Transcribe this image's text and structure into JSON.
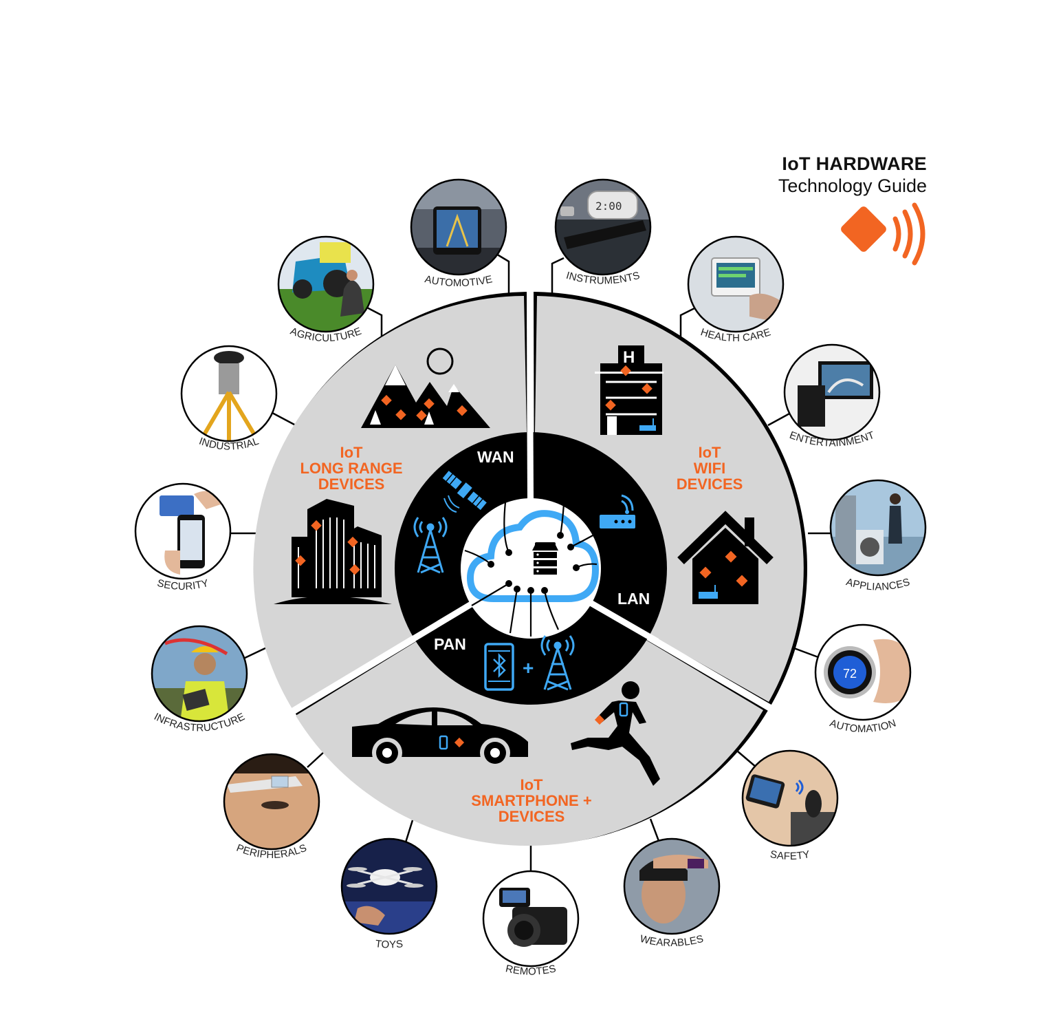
{
  "header": {
    "title": "IoT HARDWARE",
    "subtitle": "Technology Guide"
  },
  "colors": {
    "accent": "#f26522",
    "network_blue": "#3fa9f5",
    "segment_gray": "#d6d6d6",
    "ring_black": "#000000"
  },
  "segments": {
    "long_range": {
      "lines": [
        "IoT",
        "LONG RANGE",
        "DEVICES"
      ]
    },
    "wifi": {
      "lines": [
        "IoT",
        "WIFI",
        "DEVICES"
      ]
    },
    "smartphone": {
      "lines": [
        "IoT",
        "SMARTPHONE +",
        "DEVICES"
      ]
    }
  },
  "rings": {
    "wan": "WAN",
    "lan": "LAN",
    "pan": "PAN",
    "plus": "+"
  },
  "categories": [
    {
      "id": "automotive",
      "label": "AUTOMOTIVE"
    },
    {
      "id": "instruments",
      "label": "INSTRUMENTS"
    },
    {
      "id": "health-care",
      "label": "HEALTH CARE"
    },
    {
      "id": "entertainment",
      "label": "ENTERTAINMENT"
    },
    {
      "id": "appliances",
      "label": "APPLIANCES"
    },
    {
      "id": "automation",
      "label": "AUTOMATION"
    },
    {
      "id": "safety",
      "label": "SAFETY"
    },
    {
      "id": "wearables",
      "label": "WEARABLES"
    },
    {
      "id": "remotes",
      "label": "REMOTES"
    },
    {
      "id": "toys",
      "label": "TOYS"
    },
    {
      "id": "peripherals",
      "label": "PERIPHERALS"
    },
    {
      "id": "infrastructure",
      "label": "INFRASTRUCTURE"
    },
    {
      "id": "security",
      "label": "SECURITY"
    },
    {
      "id": "industrial",
      "label": "INDUSTRIAL"
    },
    {
      "id": "agriculture",
      "label": "AGRICULTURE"
    }
  ],
  "thermostat_reading": "72",
  "instrument_reading": "2:00"
}
